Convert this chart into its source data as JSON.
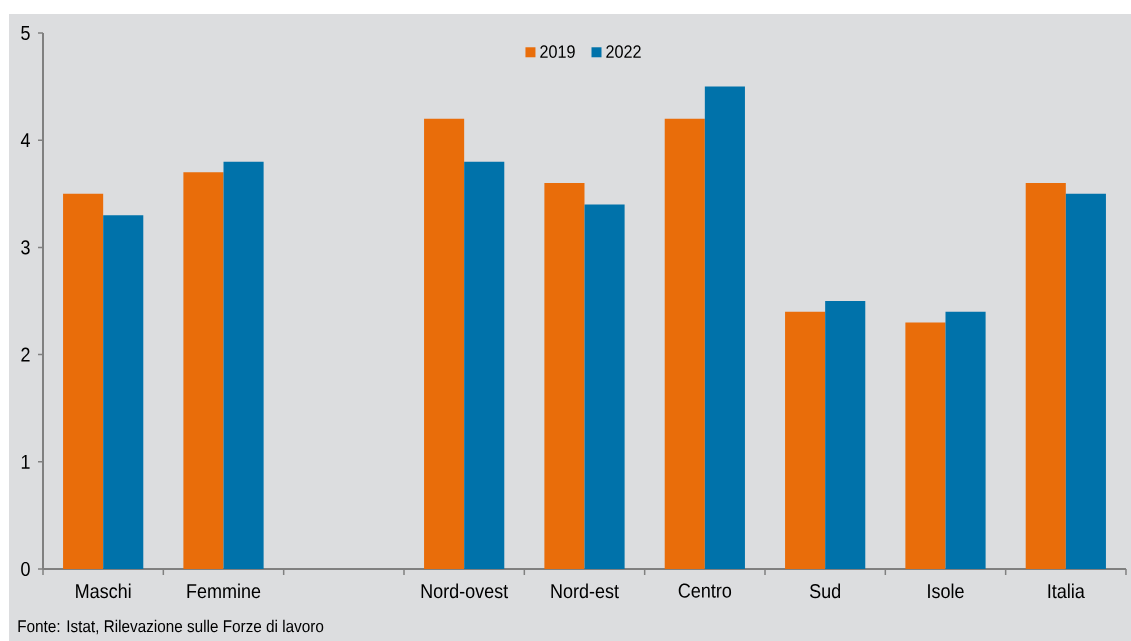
{
  "chart_data": {
    "type": "bar",
    "categories": [
      "Maschi",
      "Femmine",
      null,
      "Nord-ovest",
      "Nord-est",
      "Centro",
      "Sud",
      "Isole",
      "Italia"
    ],
    "series": [
      {
        "name": "2019",
        "color": "#e96d0a",
        "values": [
          3.5,
          3.7,
          null,
          4.2,
          3.6,
          4.2,
          2.4,
          2.3,
          3.6
        ]
      },
      {
        "name": "2022",
        "color": "#0072aa",
        "values": [
          3.3,
          3.8,
          null,
          3.8,
          3.4,
          4.5,
          2.5,
          2.4,
          3.5
        ]
      }
    ],
    "ylim": [
      0,
      5
    ],
    "yticks": [
      0,
      1,
      2,
      3,
      4,
      5
    ],
    "legend": "top",
    "annotations": [
      "Fonte: Istat, Rilevazione sulle Forze di lavoro"
    ]
  }
}
